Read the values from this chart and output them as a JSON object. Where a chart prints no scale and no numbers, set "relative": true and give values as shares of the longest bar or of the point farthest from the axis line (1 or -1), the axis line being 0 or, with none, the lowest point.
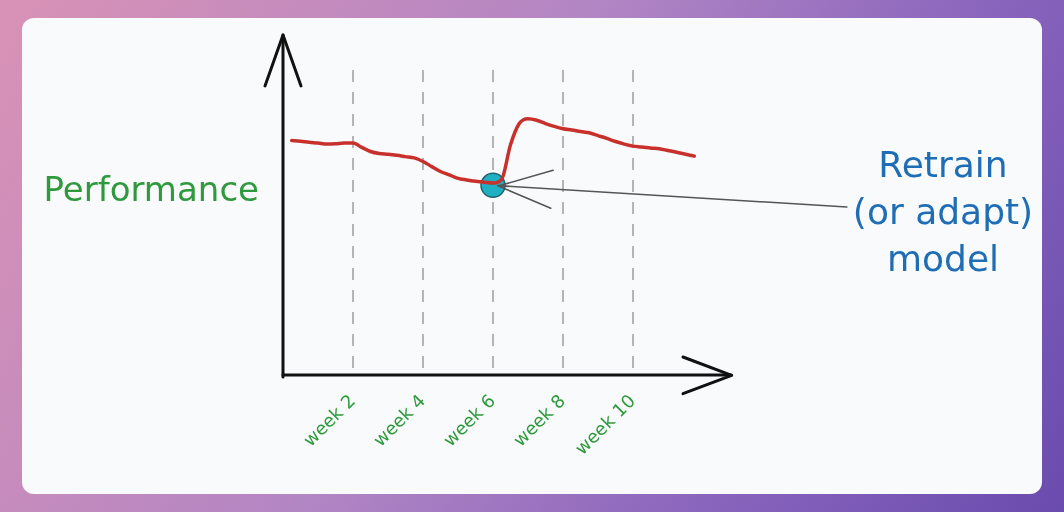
{
  "chart_data": {
    "type": "line",
    "ylabel": "Performance",
    "relative": true,
    "categories": [
      null,
      null,
      null,
      null,
      null,
      null,
      null,
      null,
      "week 2",
      null,
      null,
      null,
      null,
      null,
      null,
      null,
      "week 4",
      null,
      null,
      null,
      null,
      null,
      null,
      null,
      "week 6",
      null,
      null,
      null,
      null,
      null,
      null,
      null,
      "week 8",
      null,
      null,
      null,
      null,
      null,
      null,
      null,
      "week 10",
      null,
      null,
      null,
      null,
      null,
      null,
      null
    ],
    "grid": "x",
    "legend": false,
    "tick_labels": "x",
    "marker": "none",
    "line_style": "solid",
    "series": [
      {
        "color": "#c8302c",
        "values": [
          null,
          0.915,
          0.912,
          0.908,
          0.905,
          0.901,
          0.902,
          0.905,
          0.905,
          0.888,
          0.872,
          0.864,
          0.861,
          0.857,
          0.852,
          0.847,
          0.833,
          0.813,
          0.794,
          0.781,
          0.767,
          0.761,
          0.756,
          0.752,
          0.749,
          0.764,
          0.898,
          0.981,
          1,
          0.994,
          0.981,
          0.97,
          0.961,
          0.956,
          0.95,
          0.945,
          0.934,
          0.923,
          0.911,
          0.901,
          0.893,
          0.89,
          0.886,
          0.883,
          0.876,
          0.869,
          0.861,
          0.854
        ]
      },
      {
        "type": "scatter",
        "marker": "circle",
        "color": "#1fb0c4",
        "x": [
          "week 6"
        ],
        "values": [
          0.74
        ]
      }
    ],
    "annotations": [
      {
        "text": "Retrain (or adapt) model",
        "x": "week 6",
        "y": 0.74
      }
    ]
  }
}
